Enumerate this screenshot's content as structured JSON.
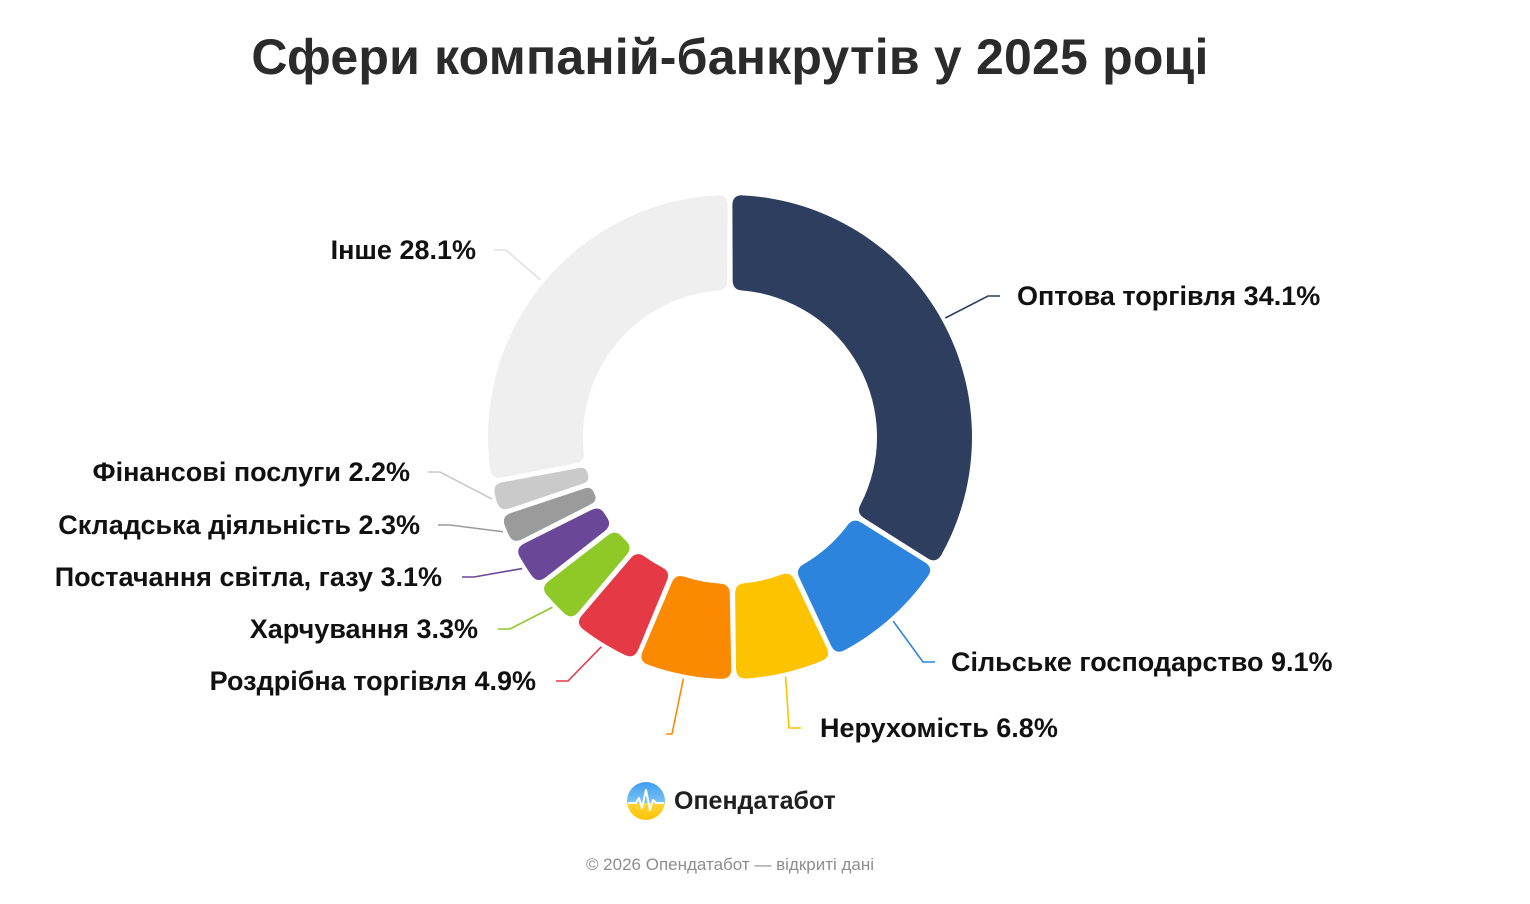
{
  "title": "Сфери компаній-банкрутів у 2025 році",
  "brand": {
    "name": "Опендатабот",
    "logo_icon": "opendatabot-logo-icon"
  },
  "footer": "© 2026 Опендатабот — відкриті дані",
  "chart_data": {
    "type": "donut",
    "title": "Сфери компаній-банкрутів у 2025 році",
    "unit": "%",
    "series": [
      {
        "name": "Оптова торгівля",
        "value": 34.1,
        "label": "Оптова торгівля 34.1%",
        "color": "#2e3e5e"
      },
      {
        "name": "Сільське господарство",
        "value": 9.1,
        "label": "Сільське господарство 9.1%",
        "color": "#2d84dc"
      },
      {
        "name": "Нерухомість",
        "value": 6.8,
        "label": "Нерухомість 6.8%",
        "color": "#fdc200"
      },
      {
        "name": "",
        "value": 6.6,
        "label": "",
        "color": "#fb8a00"
      },
      {
        "name": "Роздрібна торгівля",
        "value": 4.9,
        "label": "Роздрібна торгівля 4.9%",
        "color": "#e63946"
      },
      {
        "name": "Харчування",
        "value": 3.3,
        "label": "Харчування 3.3%",
        "color": "#8ec928"
      },
      {
        "name": "Постачання світла, газу",
        "value": 3.1,
        "label": "Постачання світла, газу 3.1%",
        "color": "#6b479a"
      },
      {
        "name": "Складська діяльність",
        "value": 2.3,
        "label": "Складська діяльність 2.3%",
        "color": "#9b9b9b"
      },
      {
        "name": "Фінансові послуги",
        "value": 2.2,
        "label": "Фінансові послуги 2.2%",
        "color": "#cacaca"
      },
      {
        "name": "Інше",
        "value": 28.1,
        "label": "Інше 28.1%",
        "color": "#efefef"
      }
    ],
    "legend": "none"
  }
}
